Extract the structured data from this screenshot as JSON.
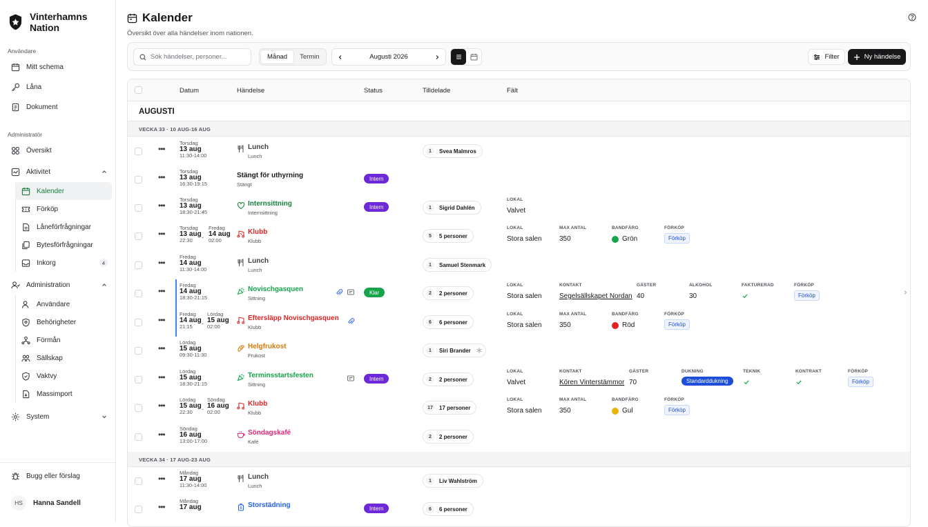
{
  "sidebar": {
    "brand": "Vinterhamns Nation",
    "sec_user": "Användare",
    "sec_admin": "Administratör",
    "items_user": [
      {
        "label": "Mitt schema",
        "icon": "calendar-icon"
      },
      {
        "label": "Låna",
        "icon": "key-icon"
      },
      {
        "label": "Dokument",
        "icon": "document-icon"
      }
    ],
    "oversikt": "Översikt",
    "aktivitet": "Aktivitet",
    "aktivitet_items": [
      "Kalender",
      "Förköp",
      "Låneförfrågningar",
      "Bytesförfrågningar",
      "Inkorg"
    ],
    "inkorg_count": "4",
    "administration": "Administration",
    "admin_items": [
      "Användare",
      "Behörigheter",
      "Förmån",
      "Sällskap",
      "Vaktvy",
      "Massimport"
    ],
    "system": "System",
    "bug": "Bugg eller förslag",
    "user_initials": "HS",
    "user_name": "Hanna Sandell"
  },
  "header": {
    "title": "Kalender",
    "subtitle": "Översikt över alla händelser inom nationen."
  },
  "toolbar": {
    "search_placeholder": "Sök händelser, personer...",
    "seg_month": "Månad",
    "seg_term": "Termin",
    "period": "Augusti 2026",
    "filter": "Filter",
    "new_event": "Ny händelse"
  },
  "table": {
    "headers": {
      "datum": "Datum",
      "handelse": "Händelse",
      "status": "Status",
      "tilldelade": "Tilldelade",
      "falt": "Fält"
    },
    "month": "AUGUSTI",
    "week33": "VECKA 33 · 10 AUG-16 AUG",
    "week34": "VECKA 34 · 17 AUG-23 AUG",
    "rows": [
      {
        "d1": "Torsdag",
        "m1": "13 aug",
        "t1": "11:30-14:00",
        "name": "Lunch",
        "cat": "Lunch",
        "assign_n": "1",
        "assign": "Svea Malmros"
      },
      {
        "d1": "Torsdag",
        "m1": "13 aug",
        "t1": "16:30-19:15",
        "name": "Stängt för uthyrning",
        "cat": "Stängt",
        "status": "Intern"
      },
      {
        "d1": "Torsdag",
        "m1": "13 aug",
        "t1": "18:30-21:45",
        "name": "Internsittning",
        "cat": "Internsittning",
        "status": "Intern",
        "assign_n": "1",
        "assign": "Sigrid Dahlén",
        "f_lokal_k": "LOKAL",
        "f_lokal_v": "Valvet"
      },
      {
        "d1": "Torsdag",
        "m1": "13 aug",
        "t1": "22:30",
        "d2": "Fredag",
        "m2": "14 aug",
        "t2": "02:00",
        "name": "Klubb",
        "cat": "Klubb",
        "assign_n": "5",
        "assign": "5 personer",
        "f_lokal_k": "LOKAL",
        "f_lokal_v": "Stora salen",
        "f_max_k": "MAX ANTAL",
        "f_max_v": "350",
        "f_band_k": "BANDFÄRG",
        "f_band_v": "Grön",
        "f_fk_k": "FÖRKÖP",
        "f_fk_v": "Förköp"
      },
      {
        "d1": "Fredag",
        "m1": "14 aug",
        "t1": "11:30-14:00",
        "name": "Lunch",
        "cat": "Lunch",
        "assign_n": "1",
        "assign": "Samuel Stenmark"
      },
      {
        "d1": "Fredag",
        "m1": "14 aug",
        "t1": "18:30-21:15",
        "name": "Novischgasquen",
        "cat": "Sittning",
        "status": "Klar",
        "assign_n": "2",
        "assign": "2 personer",
        "f_lokal_k": "LOKAL",
        "f_lokal_v": "Stora salen",
        "f_kontakt_k": "KONTAKT",
        "f_kontakt_v": "Segelsällskapet Nordan",
        "f_gaster_k": "GÄSTER",
        "f_gaster_v": "40",
        "f_alk_k": "ALKOHOL",
        "f_alk_v": "30",
        "f_fakt_k": "FAKTURERAD",
        "f_fk_k": "FÖRKÖP",
        "f_fk_v": "Förköp"
      },
      {
        "d1": "Fredag",
        "m1": "14 aug",
        "t1": "21:15",
        "d2": "Lördag",
        "m2": "15 aug",
        "t2": "02:00",
        "name": "Eftersläpp Novischgasquen",
        "cat": "Klubb",
        "assign_n": "6",
        "assign": "6 personer",
        "f_lokal_k": "LOKAL",
        "f_lokal_v": "Stora salen",
        "f_max_k": "MAX ANTAL",
        "f_max_v": "350",
        "f_band_k": "BANDFÄRG",
        "f_band_v": "Röd",
        "f_fk_k": "FÖRKÖP",
        "f_fk_v": "Förköp"
      },
      {
        "d1": "Lördag",
        "m1": "15 aug",
        "t1": "09:30-11:30",
        "name": "Helgfrukost",
        "cat": "Frukost",
        "assign_n": "1",
        "assign": "Siri Brander"
      },
      {
        "d1": "Lördag",
        "m1": "15 aug",
        "t1": "18:30-21:15",
        "name": "Terminsstartsfesten",
        "cat": "Sittning",
        "status": "Intern",
        "assign_n": "2",
        "assign": "2 personer",
        "f_lokal_k": "LOKAL",
        "f_lokal_v": "Valvet",
        "f_kontakt_k": "KONTAKT",
        "f_kontakt_v": "Kören Vinterstämmor",
        "f_gaster_k": "GÄSTER",
        "f_gaster_v": "70",
        "f_duk_k": "DUKNING",
        "f_duk_v": "Standarddukning",
        "f_tek_k": "TEKNIK",
        "f_kon_k": "KONTRAKT",
        "f_fk_k": "FÖRKÖP",
        "f_fk_v": "Förköp"
      },
      {
        "d1": "Lördag",
        "m1": "15 aug",
        "t1": "22:30",
        "d2": "Söndag",
        "m2": "16 aug",
        "t2": "02:00",
        "name": "Klubb",
        "cat": "Klubb",
        "assign_n": "17",
        "assign": "17 personer",
        "f_lokal_k": "LOKAL",
        "f_lokal_v": "Stora salen",
        "f_max_k": "MAX ANTAL",
        "f_max_v": "350",
        "f_band_k": "BANDFÄRG",
        "f_band_v": "Gul",
        "f_fk_k": "FÖRKÖP",
        "f_fk_v": "Förköp"
      },
      {
        "d1": "Söndag",
        "m1": "16 aug",
        "t1": "13:00-17:00",
        "name": "Söndagskafé",
        "cat": "Kafé",
        "assign_n": "2",
        "assign": "2 personer"
      },
      {
        "d1": "Måndag",
        "m1": "17 aug",
        "t1": "11:30-14:00",
        "name": "Lunch",
        "cat": "Lunch",
        "assign_n": "1",
        "assign": "Liv Wahlström"
      },
      {
        "d1": "Måndag",
        "m1": "17 aug",
        "name": "Storstädning",
        "status": "Intern",
        "assign_n": "6",
        "assign": "6 personer"
      }
    ]
  },
  "colors": {
    "lunch": "#52525b",
    "internsittning": "#15803d",
    "klubb": "#dc2626",
    "sittning": "#16a34a",
    "frukost": "#d97706",
    "kafe": "#db2777",
    "stad": "#2563eb",
    "intern": "#6d28d9",
    "klar": "#16a34a",
    "band_gron": "#16a34a",
    "band_rod": "#dc2626",
    "band_gul": "#eab308"
  }
}
